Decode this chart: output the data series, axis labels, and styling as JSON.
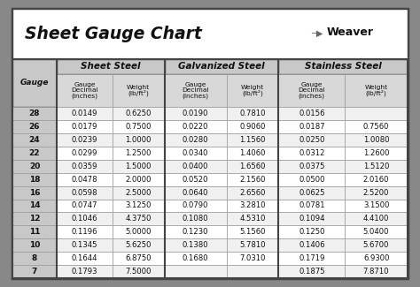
{
  "title": "Sheet Gauge Chart",
  "bg_outer": "#888888",
  "bg_inner": "#ececec",
  "bg_title": "#ffffff",
  "bg_section_header": "#c8c8c8",
  "bg_sub_header": "#d8d8d8",
  "bg_gauge_col": "#c8c8c8",
  "bg_row_even": "#f0f0f0",
  "bg_row_odd": "#ffffff",
  "text_color": "#111111",
  "border_dark": "#444444",
  "border_light": "#999999",
  "gauges": [
    28,
    26,
    24,
    22,
    20,
    18,
    16,
    14,
    12,
    11,
    10,
    8,
    7
  ],
  "sheet_steel_label": "Sheet Steel",
  "galvanized_steel_label": "Galvanized Steel",
  "stainless_steel_label": "Stainless Steel",
  "sub_col1": "Gauge\nDecimal\n(inches)",
  "sub_col2_ss": "Weight\n(lb/ft²)",
  "sub_col2_gs": "Weight\n(lb/ft²)",
  "sub_col2_sts": "Weight\n(lb/ft²)",
  "gauge_col_label": "Gauge",
  "ss_decimal": [
    "0.0149",
    "0.0179",
    "0.0239",
    "0.0299",
    "0.0359",
    "0.0478",
    "0.0598",
    "0.0747",
    "0.1046",
    "0.1196",
    "0.1345",
    "0.1644",
    "0.1793"
  ],
  "ss_weight": [
    "0.6250",
    "0.7500",
    "1.0000",
    "1.2500",
    "1.5000",
    "2.0000",
    "2.5000",
    "3.1250",
    "4.3750",
    "5.0000",
    "5.6250",
    "6.8750",
    "7.5000"
  ],
  "gs_decimal": [
    "0.0190",
    "0.0220",
    "0.0280",
    "0.0340",
    "0.0400",
    "0.0520",
    "0.0640",
    "0.0790",
    "0.1080",
    "0.1230",
    "0.1380",
    "0.1680",
    ""
  ],
  "gs_weight": [
    "0.7810",
    "0.9060",
    "1.1560",
    "1.4060",
    "1.6560",
    "2.1560",
    "2.6560",
    "3.2810",
    "4.5310",
    "5.1560",
    "5.7810",
    "7.0310",
    ""
  ],
  "sts_decimal": [
    "0.0156",
    "0.0187",
    "0.0250",
    "0.0312",
    "0.0375",
    "0.0500",
    "0.0625",
    "0.0781",
    "0.1094",
    "0.1250",
    "0.1406",
    "0.1719",
    "0.1875"
  ],
  "sts_weight": [
    "",
    "0.7560",
    "1.0080",
    "1.2600",
    "1.5120",
    "2.0160",
    "2.5200",
    "3.1500",
    "4.4100",
    "5.0400",
    "5.6700",
    "6.9300",
    "7.8710"
  ],
  "weaver_text": "Weaver",
  "title_fontsize": 13.5,
  "section_fontsize": 7.5,
  "sub_fontsize": 5.4,
  "data_fontsize": 6.1,
  "gauge_fontsize": 6.5
}
